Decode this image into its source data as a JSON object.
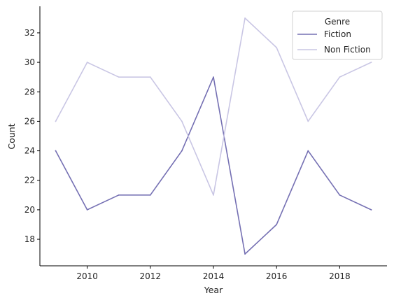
{
  "chart_data": {
    "type": "line",
    "title": "",
    "xlabel": "Year",
    "ylabel": "Count",
    "x": [
      2009,
      2010,
      2011,
      2012,
      2013,
      2014,
      2015,
      2016,
      2017,
      2018,
      2019
    ],
    "xlim": [
      2008.5,
      2019.5
    ],
    "ylim": [
      16.2,
      33.8
    ],
    "xticks": [
      2010,
      2012,
      2014,
      2016,
      2018
    ],
    "yticks": [
      18,
      20,
      22,
      24,
      26,
      28,
      30,
      32
    ],
    "grid": false,
    "legend": {
      "title": "Genre",
      "placement": "top-right"
    },
    "series": [
      {
        "name": "Fiction",
        "color": "#7570b3",
        "values": [
          24,
          20,
          21,
          21,
          24,
          29,
          17,
          19,
          24,
          21,
          20
        ]
      },
      {
        "name": "Non Fiction",
        "color": "#c9c6e4",
        "values": [
          26,
          30,
          29,
          29,
          26,
          21,
          33,
          31,
          26,
          29,
          30
        ]
      }
    ]
  }
}
